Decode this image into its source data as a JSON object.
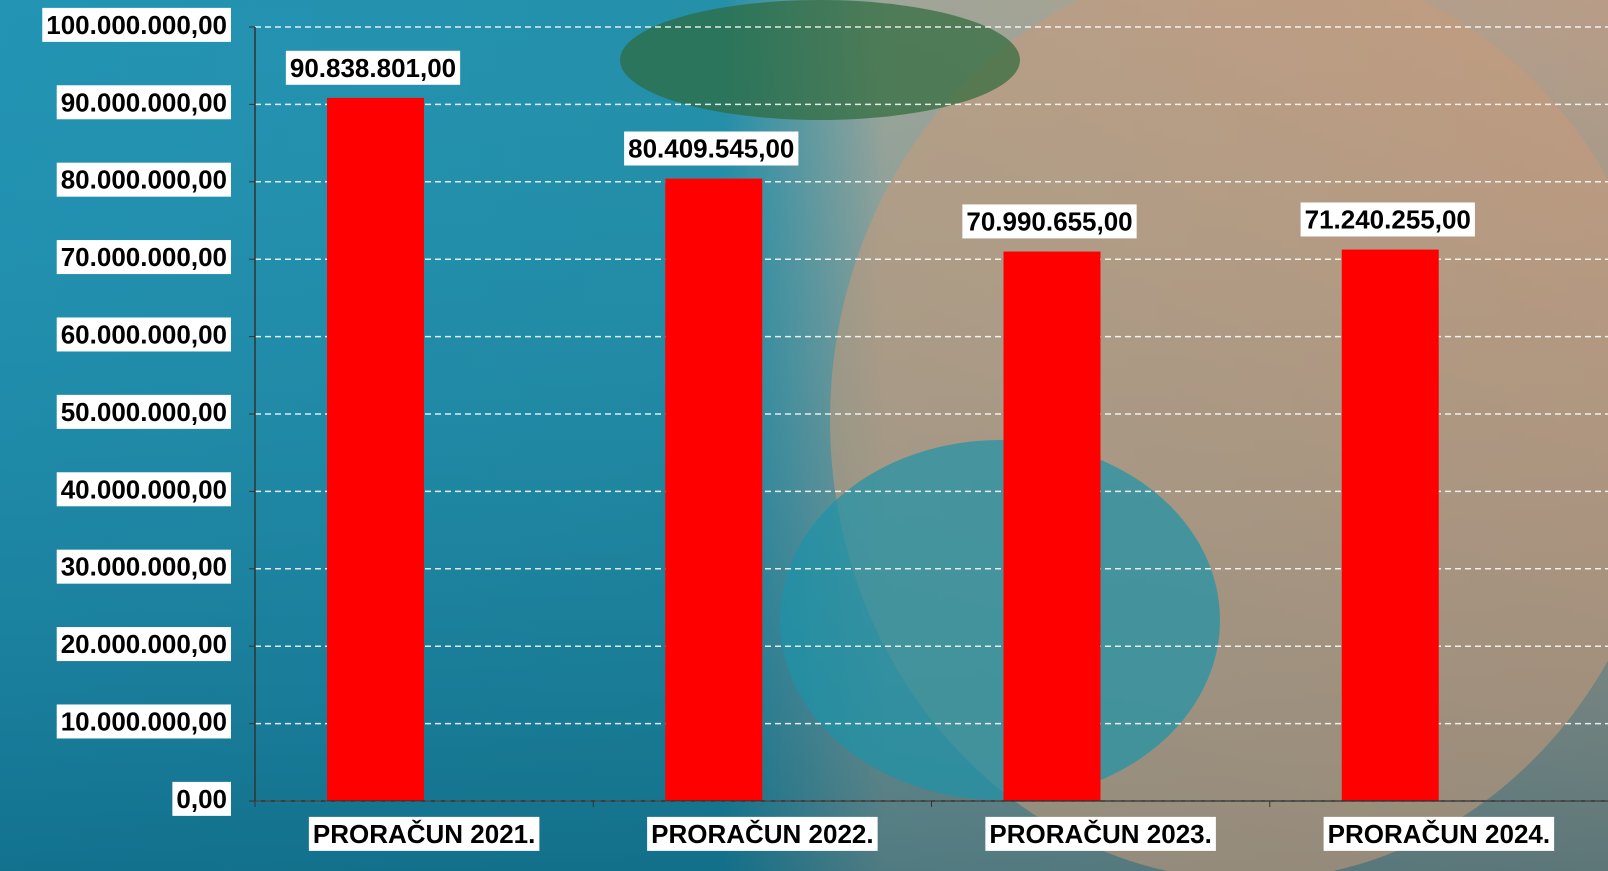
{
  "chart_data": {
    "type": "bar",
    "categories": [
      "PRORAČUN 2021.",
      "PRORAČUN 2022.",
      "PRORAČUN 2023.",
      "PRORAČUN 2024."
    ],
    "values": [
      90838801,
      80409545,
      70990655,
      71240255
    ],
    "value_labels": [
      "90.838.801,00",
      "80.409.545,00",
      "70.990.655,00",
      "71.240.255,00"
    ],
    "color": "#ff0000",
    "ylim": [
      0,
      100000000
    ],
    "yticks": [
      {
        "value": 0,
        "label": "0,00"
      },
      {
        "value": 10000000,
        "label": "10.000.000,00"
      },
      {
        "value": 20000000,
        "label": "20.000.000,00"
      },
      {
        "value": 30000000,
        "label": "30.000.000,00"
      },
      {
        "value": 40000000,
        "label": "40.000.000,00"
      },
      {
        "value": 50000000,
        "label": "50.000.000,00"
      },
      {
        "value": 60000000,
        "label": "60.000.000,00"
      },
      {
        "value": 70000000,
        "label": "70.000.000,00"
      },
      {
        "value": 80000000,
        "label": "80.000.000,00"
      },
      {
        "value": 90000000,
        "label": "90.000.000,00"
      },
      {
        "value": 100000000,
        "label": "100.000.000,00"
      }
    ],
    "grid": true
  }
}
